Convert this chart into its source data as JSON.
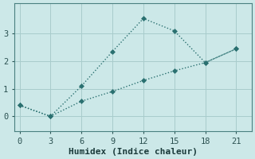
{
  "xlabel": "Humidex (Indice chaleur)",
  "ylabel": "",
  "bg_color": "#cce8e8",
  "line_color": "#2a7070",
  "grid_color": "#a8cccc",
  "series1_x": [
    0,
    3,
    6,
    9,
    12,
    15,
    18,
    21
  ],
  "series1_y": [
    0.4,
    0.0,
    1.1,
    2.35,
    3.55,
    3.1,
    1.95,
    2.45
  ],
  "series2_x": [
    0,
    3,
    6,
    9,
    12,
    15,
    18,
    21
  ],
  "series2_y": [
    0.4,
    0.0,
    0.55,
    0.9,
    1.3,
    1.65,
    1.95,
    2.45
  ],
  "xlim": [
    -0.5,
    22.5
  ],
  "ylim": [
    -0.55,
    4.1
  ],
  "xticks": [
    0,
    3,
    6,
    9,
    12,
    15,
    18,
    21
  ],
  "yticks": [
    0,
    1,
    2,
    3
  ],
  "marker": "D",
  "markersize": 3,
  "linewidth": 1.0
}
